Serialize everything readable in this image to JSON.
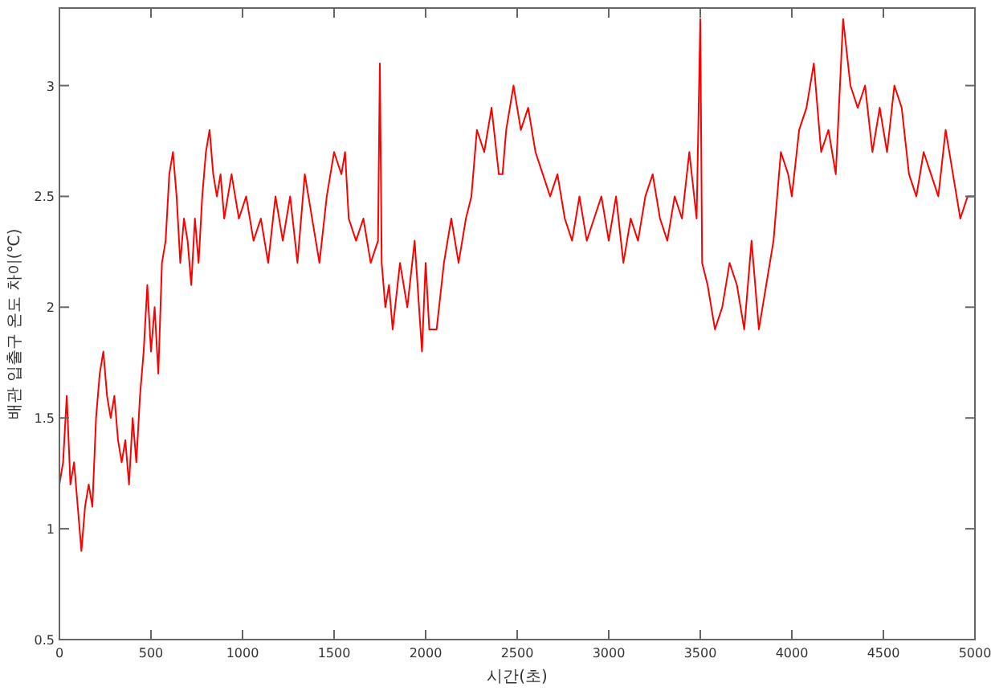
{
  "chart_data": {
    "type": "line",
    "xlabel": "시간(초)",
    "ylabel": "배관 입출구 온도 차이(℃)",
    "xlim": [
      0,
      5000
    ],
    "xticks": [
      0,
      500,
      1000,
      1500,
      2000,
      2500,
      3000,
      3500,
      4000,
      4500,
      5000
    ],
    "ylim": [
      0.5,
      3.35
    ],
    "yticks": [
      0.5,
      1,
      1.5,
      2,
      2.5,
      3
    ],
    "grid": false,
    "x": [
      0,
      20,
      40,
      60,
      80,
      100,
      120,
      140,
      160,
      180,
      200,
      220,
      240,
      260,
      280,
      300,
      320,
      340,
      360,
      380,
      400,
      420,
      440,
      460,
      480,
      500,
      520,
      540,
      560,
      580,
      600,
      620,
      640,
      660,
      680,
      700,
      720,
      740,
      760,
      780,
      800,
      820,
      840,
      860,
      880,
      900,
      940,
      980,
      1020,
      1060,
      1100,
      1140,
      1180,
      1220,
      1260,
      1300,
      1340,
      1380,
      1420,
      1460,
      1500,
      1540,
      1560,
      1580,
      1620,
      1660,
      1700,
      1740,
      1750,
      1760,
      1780,
      1800,
      1820,
      1860,
      1900,
      1940,
      1980,
      2000,
      2020,
      2060,
      2100,
      2140,
      2180,
      2220,
      2250,
      2280,
      2320,
      2360,
      2400,
      2420,
      2440,
      2480,
      2520,
      2560,
      2600,
      2640,
      2680,
      2720,
      2760,
      2800,
      2840,
      2880,
      2920,
      2960,
      3000,
      3040,
      3080,
      3120,
      3160,
      3200,
      3240,
      3280,
      3320,
      3360,
      3400,
      3440,
      3480,
      3500,
      3510,
      3540,
      3580,
      3620,
      3660,
      3700,
      3740,
      3780,
      3820,
      3860,
      3900,
      3940,
      3980,
      4000,
      4040,
      4080,
      4120,
      4160,
      4200,
      4220,
      4240,
      4280,
      4320,
      4360,
      4400,
      4440,
      4480,
      4520,
      4560,
      4600,
      4640,
      4680,
      4720,
      4760,
      4800,
      4840,
      4880,
      4920,
      4960,
      5000
    ],
    "series": [
      {
        "color": "#ff0000",
        "values": [
          1.2,
          1.3,
          1.6,
          1.2,
          1.3,
          1.1,
          0.9,
          1.1,
          1.2,
          1.1,
          1.5,
          1.7,
          1.8,
          1.6,
          1.5,
          1.6,
          1.4,
          1.3,
          1.4,
          1.2,
          1.5,
          1.3,
          1.6,
          1.8,
          2.1,
          1.8,
          2.0,
          1.7,
          2.2,
          2.3,
          2.6,
          2.7,
          2.5,
          2.2,
          2.4,
          2.3,
          2.1,
          2.4,
          2.2,
          2.5,
          2.7,
          2.8,
          2.6,
          2.5,
          2.6,
          2.4,
          2.6,
          2.4,
          2.5,
          2.3,
          2.4,
          2.2,
          2.5,
          2.3,
          2.5,
          2.2,
          2.6,
          2.4,
          2.2,
          2.5,
          2.7,
          2.6,
          2.7,
          2.4,
          2.3,
          2.4,
          2.2,
          2.3,
          3.1,
          2.2,
          2.0,
          2.1,
          1.9,
          2.2,
          2.0,
          2.3,
          1.8,
          2.2,
          1.9,
          1.9,
          2.2,
          2.4,
          2.2,
          2.4,
          2.5,
          2.8,
          2.7,
          2.9,
          2.6,
          2.6,
          2.8,
          3.0,
          2.8,
          2.9,
          2.7,
          2.6,
          2.5,
          2.6,
          2.4,
          2.3,
          2.5,
          2.3,
          2.4,
          2.5,
          2.3,
          2.5,
          2.2,
          2.4,
          2.3,
          2.5,
          2.6,
          2.4,
          2.3,
          2.5,
          2.4,
          2.7,
          2.4,
          3.3,
          2.2,
          2.1,
          1.9,
          2.0,
          2.2,
          2.1,
          1.9,
          2.3,
          1.9,
          2.1,
          2.3,
          2.7,
          2.6,
          2.5,
          2.8,
          2.9,
          3.1,
          2.7,
          2.8,
          2.7,
          2.6,
          3.3,
          3.0,
          2.9,
          3.0,
          2.7,
          2.9,
          2.7,
          3.0,
          2.9,
          2.6,
          2.5,
          2.7,
          2.6,
          2.5,
          2.8,
          2.6,
          2.4,
          2.5,
          2.5
        ]
      }
    ]
  }
}
